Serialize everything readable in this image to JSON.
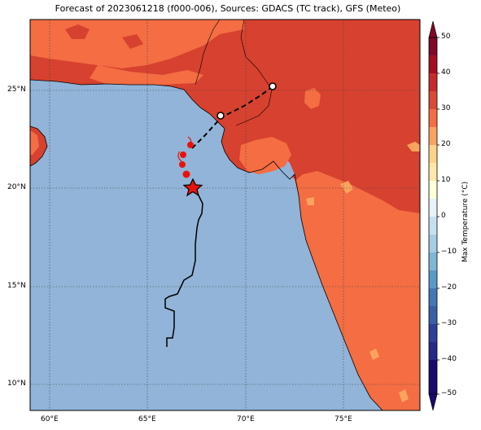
{
  "title": "Forecast of 2023061218 (f000-006), Sources: GDACS (TC track), GFS (Meteo)",
  "lon_labels": [
    "60°E",
    "65°E",
    "70°E",
    "75°E"
  ],
  "lat_labels": [
    "25°N",
    "20°N",
    "15°N",
    "10°N"
  ],
  "colorbar": {
    "label": "Max Temperature (°C)",
    "ticks": [
      "50",
      "40",
      "30",
      "20",
      "10",
      "0",
      "−10",
      "−20",
      "−30",
      "−40",
      "−50"
    ],
    "colors": {
      "c50": "#7f0a27",
      "c45": "#a50f26",
      "c40": "#c82a2c",
      "c35": "#db4a34",
      "c30": "#f46d43",
      "c25": "#fba35e",
      "c20": "#fdd38a",
      "c15": "#fee9a8",
      "c10": "#ffffd9",
      "c5": "#e6f4f8",
      "cm5": "#c6e0ef",
      "cm10": "#a6cde2",
      "cm15": "#7eb6d6",
      "cm20": "#5a9ac8",
      "cm25": "#4278b4",
      "cm30": "#3a5fa8",
      "cm35": "#2f3f97",
      "cm40": "#28288a",
      "cm50": "#1a0a6e"
    }
  },
  "map_colors": {
    "ocean": "#91b4d8",
    "land_hot": "#d7412f",
    "land_warm": "#f46d43",
    "land_mild": "#fba35e"
  },
  "track": {
    "color": "#000000",
    "forecast_color": "#000000",
    "past_marker_color": "#e8120c"
  }
}
